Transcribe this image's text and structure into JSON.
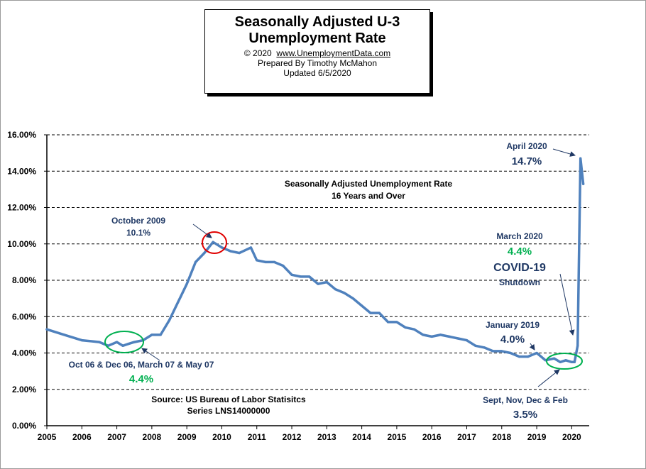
{
  "header": {
    "title_line1": "Seasonally Adjusted U-3",
    "title_line2": "Unemployment Rate",
    "copyright": "© 2020",
    "site": "www.UnemploymentData.com",
    "prepared": "Prepared  By Timothy McMahon",
    "updated": "Updated  6/5/2020"
  },
  "chart_data": {
    "type": "line",
    "title": "Seasonally Adjusted Unemployment Rate",
    "subtitle": "16 Years and Over",
    "xlabel": "",
    "ylabel": "",
    "ylim": [
      0,
      16
    ],
    "xlim": [
      2005,
      2020.5
    ],
    "grid": true,
    "y_ticks": [
      "0.00%",
      "2.00%",
      "4.00%",
      "6.00%",
      "8.00%",
      "10.00%",
      "12.00%",
      "14.00%",
      "16.00%"
    ],
    "x_ticks": [
      "2005",
      "2006",
      "2007",
      "2008",
      "2009",
      "2010",
      "2011",
      "2012",
      "2013",
      "2014",
      "2015",
      "2016",
      "2017",
      "2018",
      "2019",
      "2020"
    ],
    "series": [
      {
        "name": "Unemployment Rate",
        "color": "#4f81bd",
        "x": [
          2005.0,
          2005.5,
          2006.0,
          2006.5,
          2006.75,
          2007.0,
          2007.17,
          2007.33,
          2007.5,
          2007.75,
          2008.0,
          2008.25,
          2008.5,
          2008.75,
          2009.0,
          2009.25,
          2009.5,
          2009.75,
          2010.0,
          2010.25,
          2010.5,
          2010.83,
          2011.0,
          2011.25,
          2011.5,
          2011.75,
          2012.0,
          2012.25,
          2012.5,
          2012.75,
          2013.0,
          2013.25,
          2013.5,
          2013.75,
          2014.0,
          2014.25,
          2014.5,
          2014.75,
          2015.0,
          2015.25,
          2015.5,
          2015.75,
          2016.0,
          2016.25,
          2016.5,
          2016.75,
          2017.0,
          2017.25,
          2017.5,
          2017.75,
          2018.0,
          2018.25,
          2018.5,
          2018.75,
          2019.0,
          2019.25,
          2019.5,
          2019.67,
          2019.83,
          2020.0,
          2020.08,
          2020.17,
          2020.25,
          2020.33
        ],
        "values": [
          5.3,
          5.0,
          4.7,
          4.6,
          4.4,
          4.6,
          4.4,
          4.5,
          4.6,
          4.7,
          5.0,
          5.0,
          5.8,
          6.8,
          7.8,
          9.0,
          9.5,
          10.1,
          9.8,
          9.6,
          9.5,
          9.8,
          9.1,
          9.0,
          9.0,
          8.8,
          8.3,
          8.2,
          8.2,
          7.8,
          7.9,
          7.5,
          7.3,
          7.0,
          6.6,
          6.2,
          6.2,
          5.7,
          5.7,
          5.4,
          5.3,
          5.0,
          4.9,
          5.0,
          4.9,
          4.8,
          4.7,
          4.4,
          4.3,
          4.1,
          4.1,
          4.0,
          3.8,
          3.8,
          4.0,
          3.6,
          3.7,
          3.5,
          3.6,
          3.5,
          3.5,
          4.4,
          14.7,
          13.3
        ]
      }
    ],
    "annotations": [
      {
        "label": "October 2009",
        "value_label": "10.1%",
        "x": 2009.75,
        "y": 10.1
      },
      {
        "label": "Oct 06  & Dec 06, March 07 & May 07",
        "value_label": "4.4%",
        "x": 2007.25,
        "y": 4.5
      },
      {
        "label": "April 2020",
        "value_label": "14.7%",
        "x": 2020.25,
        "y": 14.7
      },
      {
        "label": "March 2020",
        "value_label": "4.4%",
        "x": 2020.17,
        "y": 4.4
      },
      {
        "label": "January 2019",
        "value_label": "4.0%",
        "x": 2019.0,
        "y": 4.0
      },
      {
        "label": "Sept, Nov, Dec & Feb",
        "value_label": "3.5%",
        "x": 2019.8,
        "y": 3.5
      }
    ],
    "covid_label": "COVID-19",
    "shutdown_label": "Shutdown",
    "source_line1": "Source:  US  Bureau of Labor Statisitcs",
    "source_line2": "Series LNS14000000"
  }
}
